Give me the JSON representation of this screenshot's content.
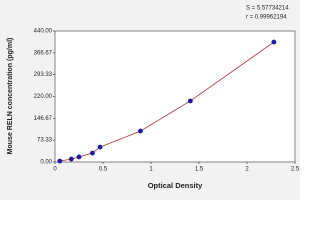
{
  "chart_data": {
    "type": "scatter",
    "y_label": "Mouse RELN concentration (pg/ml)",
    "x_label": "Optical Density",
    "annotations": [
      "S = 5.57734214",
      "r = 0.99962194"
    ],
    "x": [
      0.05,
      0.17,
      0.25,
      0.39,
      0.47,
      0.89,
      1.41,
      2.28
    ],
    "series": [
      {
        "color": "#1a1aa8",
        "line_color": "#c0282a",
        "values": [
          3,
          10,
          17,
          30,
          50,
          104,
          205,
          403
        ]
      }
    ],
    "xlim": [
      0,
      2.5
    ],
    "xticks": [
      0,
      0.5,
      1,
      1.5,
      2,
      2.5
    ],
    "ylim": [
      0,
      440
    ],
    "yticks": [
      {
        "value": 0,
        "label": "0.00"
      },
      {
        "value": 73.33,
        "label": "73.33"
      },
      {
        "value": 146.67,
        "label": "146.67"
      },
      {
        "value": 220,
        "label": "220.00"
      },
      {
        "value": 293.33,
        "label": "293.33"
      },
      {
        "value": 366.67,
        "label": "366.67"
      },
      {
        "value": 440,
        "label": "440.00"
      }
    ],
    "grid": false
  }
}
